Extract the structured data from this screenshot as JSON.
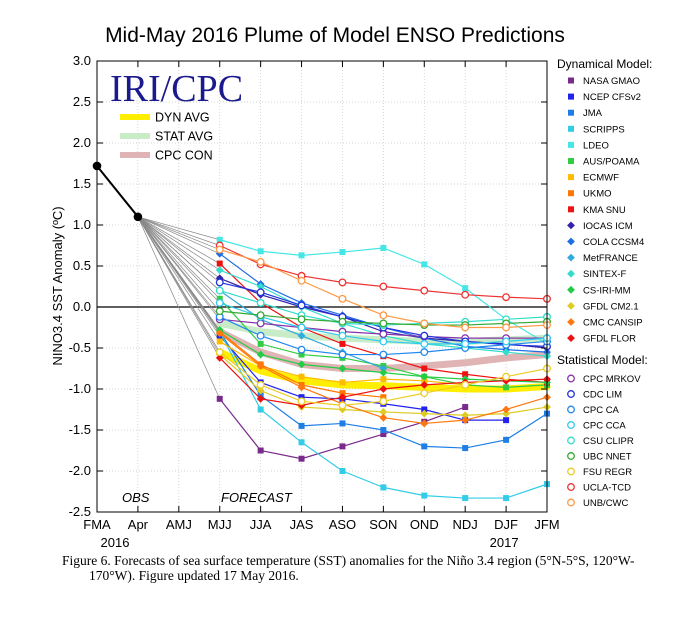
{
  "chart_data": {
    "type": "line",
    "title": "Mid-May 2016 Plume of Model ENSO Predictions",
    "ylabel": "NINO3.4 SST Anomaly (ºC)",
    "ylim": [
      -2.5,
      3.0
    ],
    "yticks": [
      "3.0",
      "2.5",
      "2.0",
      "1.5",
      "1.0",
      "0.5",
      "0.0",
      "-0.5",
      "-1.0",
      "-1.5",
      "-2.0",
      "-2.5"
    ],
    "categories": [
      "FMA",
      "Apr",
      "AMJ",
      "MJJ",
      "JJA",
      "JAS",
      "ASO",
      "SON",
      "OND",
      "NDJ",
      "DJF",
      "JFM"
    ],
    "year_labels": [
      "2016",
      "2017"
    ],
    "logo_text": "IRI/CPC",
    "obs_label": "OBS",
    "forecast_label": "FORECAST",
    "observed": {
      "x": [
        "FMA",
        "Apr"
      ],
      "values": [
        1.72,
        1.1
      ]
    },
    "averages": [
      {
        "name": "DYN AVG",
        "color": "#ffee00",
        "values": [
          -0.55,
          -0.78,
          -0.9,
          -0.95,
          -0.96,
          -0.98,
          -1.0,
          -1.0,
          -0.97
        ]
      },
      {
        "name": "STAT AVG",
        "color": "#c8ecc8",
        "values": [
          -0.2,
          -0.3,
          -0.35,
          -0.38,
          -0.4,
          -0.42,
          -0.42,
          -0.4,
          -0.38
        ]
      },
      {
        "name": "CPC CON",
        "color": "#e0b4b4",
        "values": [
          -0.3,
          -0.55,
          -0.7,
          -0.75,
          -0.75,
          -0.72,
          -0.68,
          -0.62,
          -0.58
        ]
      }
    ],
    "legend_dynamical_title": "Dynamical Model:",
    "legend_statistical_title": "Statistical Model:",
    "dynamical_models": [
      {
        "name": "NASA GMAO",
        "color": "#7a2a8c",
        "marker": "square",
        "values": [
          -1.12,
          -1.75,
          -1.85,
          -1.7,
          -1.55,
          -1.4,
          -1.22,
          null,
          null
        ]
      },
      {
        "name": "NCEP CFSv2",
        "color": "#2222ee",
        "marker": "square",
        "values": [
          -0.35,
          -0.92,
          -1.1,
          -1.12,
          -1.18,
          -1.25,
          -1.38,
          -1.38,
          null
        ]
      },
      {
        "name": "JMA",
        "color": "#1e7ee6",
        "marker": "square",
        "values": [
          -0.3,
          -1.08,
          -1.45,
          -1.42,
          -1.5,
          -1.7,
          -1.72,
          -1.62,
          -1.3
        ]
      },
      {
        "name": "SCRIPPS",
        "color": "#33cce6",
        "marker": "square",
        "values": [
          -0.3,
          -1.25,
          -1.65,
          -2.0,
          -2.2,
          -2.3,
          -2.33,
          -2.33,
          -2.16
        ]
      },
      {
        "name": "LDEO",
        "color": "#44e6e6",
        "marker": "square",
        "values": [
          0.82,
          0.68,
          0.63,
          0.67,
          0.72,
          0.52,
          0.23,
          -0.15,
          -0.45
        ]
      },
      {
        "name": "AUS/POAMA",
        "color": "#33cc44",
        "marker": "square",
        "values": [
          0.1,
          -0.45,
          -0.58,
          -0.62,
          -0.72,
          -0.85,
          -0.95,
          -0.98,
          -0.95
        ]
      },
      {
        "name": "ECMWF",
        "color": "#ffbb00",
        "marker": "square",
        "values": [
          -0.42,
          -0.72,
          -0.85,
          -0.92,
          -0.88,
          -0.9,
          -0.95,
          null,
          null
        ]
      },
      {
        "name": "UKMO",
        "color": "#ff7700",
        "marker": "square",
        "values": [
          -0.3,
          -0.7,
          -0.95,
          -1.05,
          -1.1,
          null,
          null,
          null,
          null
        ]
      },
      {
        "name": "KMA SNU",
        "color": "#ee1111",
        "marker": "square",
        "values": [
          0.53,
          0.05,
          -0.25,
          -0.45,
          -0.6,
          -0.75,
          -0.82,
          -0.88,
          -0.92
        ]
      },
      {
        "name": "IOCAS ICM",
        "color": "#3322aa",
        "marker": "diamond",
        "values": [
          0.35,
          0.15,
          0.0,
          -0.12,
          -0.3,
          -0.38,
          -0.42,
          -0.45,
          -0.5
        ]
      },
      {
        "name": "COLA CCSM4",
        "color": "#1e6ee6",
        "marker": "diamond",
        "values": [
          0.65,
          0.28,
          0.05,
          -0.1,
          -0.25,
          -0.38,
          -0.48,
          -0.52,
          -0.55
        ]
      },
      {
        "name": "MetFRANCE",
        "color": "#33aadd",
        "marker": "diamond",
        "values": [
          0.2,
          -0.15,
          -0.35,
          -0.55,
          -0.75,
          null,
          null,
          null,
          null
        ]
      },
      {
        "name": "SINTEX-F",
        "color": "#33ddcc",
        "marker": "diamond",
        "values": [
          0.45,
          0.25,
          0.0,
          -0.2,
          -0.35,
          -0.45,
          -0.5,
          -0.55,
          -0.6
        ]
      },
      {
        "name": "CS-IRI-MM",
        "color": "#22cc44",
        "marker": "diamond",
        "values": [
          -0.28,
          -0.58,
          -0.7,
          -0.75,
          -0.8,
          -0.85,
          -0.88,
          -0.9,
          -0.92
        ]
      },
      {
        "name": "GFDL CM2.1",
        "color": "#ddcc22",
        "marker": "diamond",
        "values": [
          -0.58,
          -1.02,
          -1.22,
          -1.25,
          -1.28,
          -1.3,
          -1.32,
          -1.3,
          -1.22
        ]
      },
      {
        "name": "CMC CANSIP",
        "color": "#ff7711",
        "marker": "diamond",
        "values": [
          -0.32,
          -0.72,
          -0.98,
          -1.18,
          -1.35,
          -1.42,
          -1.38,
          -1.25,
          -1.1
        ]
      },
      {
        "name": "GFDL FLOR",
        "color": "#ee1111",
        "marker": "diamond",
        "values": [
          -0.62,
          -1.12,
          -1.2,
          -1.1,
          -1.0,
          -0.95,
          -0.92,
          -0.9,
          -0.88
        ]
      }
    ],
    "statistical_models": [
      {
        "name": "CPC MRKOV",
        "color": "#8833aa",
        "marker": "circle",
        "values": [
          -0.15,
          -0.2,
          -0.25,
          -0.3,
          -0.33,
          -0.36,
          -0.38,
          -0.38,
          -0.38
        ]
      },
      {
        "name": "CDC LIM",
        "color": "#2233dd",
        "marker": "circle",
        "values": [
          0.3,
          0.18,
          0.02,
          -0.12,
          -0.25,
          -0.35,
          -0.42,
          -0.46,
          -0.48
        ]
      },
      {
        "name": "CPC CA",
        "color": "#2288ee",
        "marker": "circle",
        "values": [
          -0.12,
          -0.35,
          -0.52,
          -0.58,
          -0.58,
          -0.55,
          -0.5,
          -0.46,
          -0.42
        ]
      },
      {
        "name": "CPC CCA",
        "color": "#33ccee",
        "marker": "circle",
        "values": [
          0.05,
          -0.12,
          -0.25,
          -0.35,
          -0.42,
          -0.45,
          -0.45,
          -0.42,
          -0.38
        ]
      },
      {
        "name": "CSU CLIPR",
        "color": "#33ddcc",
        "marker": "circle",
        "values": [
          0.2,
          0.05,
          -0.1,
          -0.2,
          -0.22,
          -0.2,
          -0.18,
          -0.15,
          -0.12
        ]
      },
      {
        "name": "UBC NNET",
        "color": "#33aa33",
        "marker": "circle",
        "values": [
          -0.05,
          -0.1,
          -0.15,
          -0.18,
          -0.2,
          -0.22,
          -0.22,
          -0.2,
          -0.18
        ]
      },
      {
        "name": "FSU REGR",
        "color": "#eecc22",
        "marker": "circle",
        "values": [
          -0.55,
          -0.95,
          -1.15,
          -1.2,
          -1.15,
          -1.05,
          -0.95,
          -0.85,
          -0.75
        ]
      },
      {
        "name": "UCLA-TCD",
        "color": "#ee3333",
        "marker": "circle",
        "values": [
          0.75,
          0.52,
          0.38,
          0.3,
          0.25,
          0.2,
          0.15,
          0.12,
          0.1
        ]
      },
      {
        "name": "UNB/CWC",
        "color": "#ff9944",
        "marker": "circle",
        "values": [
          0.7,
          0.55,
          0.32,
          0.1,
          -0.1,
          -0.2,
          -0.25,
          -0.25,
          -0.22
        ]
      }
    ]
  },
  "caption": {
    "line1": "Figure 6. Forecasts of sea surface temperature (SST) anomalies for the Niño 3.4 region (5°N-5°S, 120°W-",
    "line2": "170°W). Figure updated 17 May 2016."
  }
}
